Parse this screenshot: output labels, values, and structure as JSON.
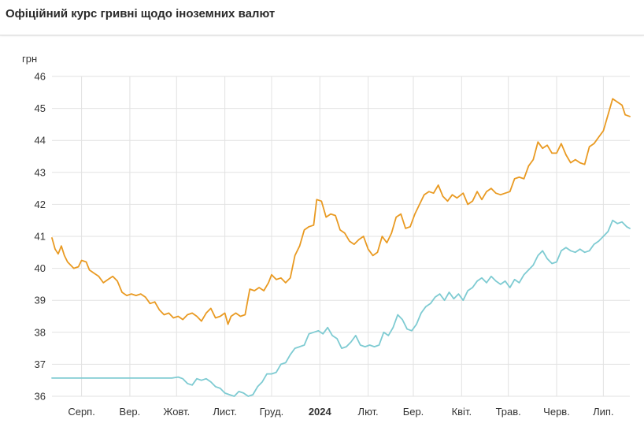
{
  "title": "Офіційний курс гривні щодо іноземних валют",
  "chart_data": {
    "type": "line",
    "title": "Офіційний курс гривні щодо іноземних валют",
    "ylabel": "грн",
    "ylim": [
      36,
      46
    ],
    "yticks": [
      "36",
      "37",
      "38",
      "39",
      "40",
      "41",
      "42",
      "43",
      "44",
      "45",
      "46"
    ],
    "xlim": [
      "2023-07-13",
      "2024-07-18"
    ],
    "x_ticks": [
      {
        "label": "Серп.",
        "date": "2023-08-01",
        "bold": false
      },
      {
        "label": "Вер.",
        "date": "2023-09-01",
        "bold": false
      },
      {
        "label": "Жовт.",
        "date": "2023-10-01",
        "bold": false
      },
      {
        "label": "Лист.",
        "date": "2023-11-01",
        "bold": false
      },
      {
        "label": "Груд.",
        "date": "2023-12-01",
        "bold": false
      },
      {
        "label": "2024",
        "date": "2024-01-01",
        "bold": true
      },
      {
        "label": "Лют.",
        "date": "2024-02-01",
        "bold": false
      },
      {
        "label": "Бер.",
        "date": "2024-03-01",
        "bold": false
      },
      {
        "label": "Квіт.",
        "date": "2024-04-01",
        "bold": false
      },
      {
        "label": "Трав.",
        "date": "2024-05-01",
        "bold": false
      },
      {
        "label": "Черв.",
        "date": "2024-06-01",
        "bold": false
      },
      {
        "label": "Лип.",
        "date": "2024-07-01",
        "bold": false
      }
    ],
    "grid": true,
    "series": [
      {
        "color": "#e99a22",
        "points": [
          [
            "2023-07-13",
            40.95
          ],
          [
            "2023-07-15",
            40.6
          ],
          [
            "2023-07-17",
            40.45
          ],
          [
            "2023-07-19",
            40.7
          ],
          [
            "2023-07-21",
            40.4
          ],
          [
            "2023-07-23",
            40.2
          ],
          [
            "2023-07-25",
            40.1
          ],
          [
            "2023-07-27",
            40.0
          ],
          [
            "2023-07-30",
            40.05
          ],
          [
            "2023-08-01",
            40.25
          ],
          [
            "2023-08-04",
            40.2
          ],
          [
            "2023-08-06",
            39.95
          ],
          [
            "2023-08-09",
            39.85
          ],
          [
            "2023-08-12",
            39.75
          ],
          [
            "2023-08-15",
            39.55
          ],
          [
            "2023-08-18",
            39.65
          ],
          [
            "2023-08-21",
            39.75
          ],
          [
            "2023-08-24",
            39.6
          ],
          [
            "2023-08-27",
            39.25
          ],
          [
            "2023-08-30",
            39.15
          ],
          [
            "2023-09-02",
            39.2
          ],
          [
            "2023-09-05",
            39.15
          ],
          [
            "2023-09-08",
            39.2
          ],
          [
            "2023-09-11",
            39.1
          ],
          [
            "2023-09-14",
            38.9
          ],
          [
            "2023-09-17",
            38.95
          ],
          [
            "2023-09-20",
            38.7
          ],
          [
            "2023-09-23",
            38.55
          ],
          [
            "2023-09-26",
            38.6
          ],
          [
            "2023-09-29",
            38.45
          ],
          [
            "2023-10-02",
            38.5
          ],
          [
            "2023-10-05",
            38.4
          ],
          [
            "2023-10-08",
            38.55
          ],
          [
            "2023-10-11",
            38.6
          ],
          [
            "2023-10-14",
            38.5
          ],
          [
            "2023-10-17",
            38.35
          ],
          [
            "2023-10-20",
            38.6
          ],
          [
            "2023-10-23",
            38.75
          ],
          [
            "2023-10-26",
            38.45
          ],
          [
            "2023-10-29",
            38.5
          ],
          [
            "2023-11-01",
            38.6
          ],
          [
            "2023-11-03",
            38.25
          ],
          [
            "2023-11-05",
            38.5
          ],
          [
            "2023-11-08",
            38.6
          ],
          [
            "2023-11-11",
            38.5
          ],
          [
            "2023-11-14",
            38.55
          ],
          [
            "2023-11-17",
            39.35
          ],
          [
            "2023-11-20",
            39.3
          ],
          [
            "2023-11-23",
            39.4
          ],
          [
            "2023-11-26",
            39.3
          ],
          [
            "2023-11-29",
            39.55
          ],
          [
            "2023-12-01",
            39.8
          ],
          [
            "2023-12-04",
            39.65
          ],
          [
            "2023-12-07",
            39.7
          ],
          [
            "2023-12-10",
            39.55
          ],
          [
            "2023-12-13",
            39.7
          ],
          [
            "2023-12-16",
            40.4
          ],
          [
            "2023-12-19",
            40.7
          ],
          [
            "2023-12-22",
            41.2
          ],
          [
            "2023-12-25",
            41.3
          ],
          [
            "2023-12-28",
            41.35
          ],
          [
            "2023-12-30",
            42.15
          ],
          [
            "2024-01-02",
            42.1
          ],
          [
            "2024-01-05",
            41.6
          ],
          [
            "2024-01-08",
            41.7
          ],
          [
            "2024-01-11",
            41.65
          ],
          [
            "2024-01-14",
            41.2
          ],
          [
            "2024-01-17",
            41.1
          ],
          [
            "2024-01-20",
            40.85
          ],
          [
            "2024-01-23",
            40.75
          ],
          [
            "2024-01-26",
            40.9
          ],
          [
            "2024-01-29",
            41.0
          ],
          [
            "2024-02-01",
            40.6
          ],
          [
            "2024-02-04",
            40.4
          ],
          [
            "2024-02-07",
            40.5
          ],
          [
            "2024-02-10",
            41.0
          ],
          [
            "2024-02-13",
            40.8
          ],
          [
            "2024-02-16",
            41.1
          ],
          [
            "2024-02-19",
            41.6
          ],
          [
            "2024-02-22",
            41.7
          ],
          [
            "2024-02-25",
            41.25
          ],
          [
            "2024-02-28",
            41.3
          ],
          [
            "2024-03-02",
            41.7
          ],
          [
            "2024-03-05",
            42.0
          ],
          [
            "2024-03-08",
            42.3
          ],
          [
            "2024-03-11",
            42.4
          ],
          [
            "2024-03-14",
            42.35
          ],
          [
            "2024-03-17",
            42.6
          ],
          [
            "2024-03-20",
            42.25
          ],
          [
            "2024-03-23",
            42.1
          ],
          [
            "2024-03-26",
            42.3
          ],
          [
            "2024-03-29",
            42.2
          ],
          [
            "2024-04-02",
            42.35
          ],
          [
            "2024-04-05",
            42.0
          ],
          [
            "2024-04-08",
            42.1
          ],
          [
            "2024-04-11",
            42.4
          ],
          [
            "2024-04-14",
            42.15
          ],
          [
            "2024-04-17",
            42.4
          ],
          [
            "2024-04-20",
            42.5
          ],
          [
            "2024-04-23",
            42.35
          ],
          [
            "2024-04-26",
            42.3
          ],
          [
            "2024-04-29",
            42.35
          ],
          [
            "2024-05-02",
            42.4
          ],
          [
            "2024-05-05",
            42.8
          ],
          [
            "2024-05-08",
            42.85
          ],
          [
            "2024-05-11",
            42.8
          ],
          [
            "2024-05-14",
            43.2
          ],
          [
            "2024-05-17",
            43.4
          ],
          [
            "2024-05-20",
            43.95
          ],
          [
            "2024-05-23",
            43.75
          ],
          [
            "2024-05-26",
            43.85
          ],
          [
            "2024-05-29",
            43.6
          ],
          [
            "2024-06-01",
            43.6
          ],
          [
            "2024-06-04",
            43.9
          ],
          [
            "2024-06-07",
            43.55
          ],
          [
            "2024-06-10",
            43.3
          ],
          [
            "2024-06-13",
            43.4
          ],
          [
            "2024-06-16",
            43.3
          ],
          [
            "2024-06-19",
            43.25
          ],
          [
            "2024-06-22",
            43.8
          ],
          [
            "2024-06-25",
            43.9
          ],
          [
            "2024-06-28",
            44.1
          ],
          [
            "2024-07-01",
            44.3
          ],
          [
            "2024-07-04",
            44.8
          ],
          [
            "2024-07-07",
            45.3
          ],
          [
            "2024-07-10",
            45.2
          ],
          [
            "2024-07-13",
            45.1
          ],
          [
            "2024-07-15",
            44.8
          ],
          [
            "2024-07-18",
            44.75
          ]
        ]
      },
      {
        "color": "#7ecbd2",
        "points": [
          [
            "2023-07-13",
            36.57
          ],
          [
            "2023-08-01",
            36.57
          ],
          [
            "2023-09-01",
            36.57
          ],
          [
            "2023-09-28",
            36.57
          ],
          [
            "2023-10-02",
            36.6
          ],
          [
            "2023-10-05",
            36.55
          ],
          [
            "2023-10-08",
            36.4
          ],
          [
            "2023-10-11",
            36.35
          ],
          [
            "2023-10-14",
            36.55
          ],
          [
            "2023-10-17",
            36.5
          ],
          [
            "2023-10-20",
            36.55
          ],
          [
            "2023-10-23",
            36.45
          ],
          [
            "2023-10-26",
            36.3
          ],
          [
            "2023-10-29",
            36.25
          ],
          [
            "2023-11-01",
            36.1
          ],
          [
            "2023-11-04",
            36.05
          ],
          [
            "2023-11-07",
            36.0
          ],
          [
            "2023-11-10",
            36.15
          ],
          [
            "2023-11-13",
            36.1
          ],
          [
            "2023-11-16",
            36.0
          ],
          [
            "2023-11-19",
            36.05
          ],
          [
            "2023-11-22",
            36.3
          ],
          [
            "2023-11-25",
            36.45
          ],
          [
            "2023-11-28",
            36.7
          ],
          [
            "2023-12-01",
            36.7
          ],
          [
            "2023-12-04",
            36.75
          ],
          [
            "2023-12-07",
            37.0
          ],
          [
            "2023-12-10",
            37.05
          ],
          [
            "2023-12-13",
            37.3
          ],
          [
            "2023-12-16",
            37.5
          ],
          [
            "2023-12-19",
            37.55
          ],
          [
            "2023-12-22",
            37.6
          ],
          [
            "2023-12-25",
            37.95
          ],
          [
            "2023-12-28",
            38.0
          ],
          [
            "2023-12-31",
            38.05
          ],
          [
            "2024-01-03",
            37.95
          ],
          [
            "2024-01-06",
            38.15
          ],
          [
            "2024-01-09",
            37.9
          ],
          [
            "2024-01-12",
            37.8
          ],
          [
            "2024-01-15",
            37.5
          ],
          [
            "2024-01-18",
            37.55
          ],
          [
            "2024-01-21",
            37.7
          ],
          [
            "2024-01-24",
            37.9
          ],
          [
            "2024-01-27",
            37.6
          ],
          [
            "2024-01-30",
            37.55
          ],
          [
            "2024-02-02",
            37.6
          ],
          [
            "2024-02-05",
            37.55
          ],
          [
            "2024-02-08",
            37.6
          ],
          [
            "2024-02-11",
            38.0
          ],
          [
            "2024-02-14",
            37.9
          ],
          [
            "2024-02-17",
            38.15
          ],
          [
            "2024-02-20",
            38.55
          ],
          [
            "2024-02-23",
            38.4
          ],
          [
            "2024-02-26",
            38.1
          ],
          [
            "2024-02-29",
            38.05
          ],
          [
            "2024-03-03",
            38.25
          ],
          [
            "2024-03-06",
            38.6
          ],
          [
            "2024-03-09",
            38.8
          ],
          [
            "2024-03-12",
            38.9
          ],
          [
            "2024-03-15",
            39.1
          ],
          [
            "2024-03-18",
            39.2
          ],
          [
            "2024-03-21",
            39.0
          ],
          [
            "2024-03-24",
            39.25
          ],
          [
            "2024-03-27",
            39.05
          ],
          [
            "2024-03-30",
            39.2
          ],
          [
            "2024-04-02",
            39.0
          ],
          [
            "2024-04-05",
            39.3
          ],
          [
            "2024-04-08",
            39.4
          ],
          [
            "2024-04-11",
            39.6
          ],
          [
            "2024-04-14",
            39.7
          ],
          [
            "2024-04-17",
            39.55
          ],
          [
            "2024-04-20",
            39.75
          ],
          [
            "2024-04-23",
            39.6
          ],
          [
            "2024-04-26",
            39.5
          ],
          [
            "2024-04-29",
            39.6
          ],
          [
            "2024-05-02",
            39.4
          ],
          [
            "2024-05-05",
            39.65
          ],
          [
            "2024-05-08",
            39.55
          ],
          [
            "2024-05-11",
            39.8
          ],
          [
            "2024-05-14",
            39.95
          ],
          [
            "2024-05-17",
            40.1
          ],
          [
            "2024-05-20",
            40.4
          ],
          [
            "2024-05-23",
            40.55
          ],
          [
            "2024-05-26",
            40.3
          ],
          [
            "2024-05-29",
            40.15
          ],
          [
            "2024-06-01",
            40.2
          ],
          [
            "2024-06-04",
            40.55
          ],
          [
            "2024-06-07",
            40.65
          ],
          [
            "2024-06-10",
            40.55
          ],
          [
            "2024-06-13",
            40.5
          ],
          [
            "2024-06-16",
            40.6
          ],
          [
            "2024-06-19",
            40.5
          ],
          [
            "2024-06-22",
            40.55
          ],
          [
            "2024-06-25",
            40.75
          ],
          [
            "2024-06-28",
            40.85
          ],
          [
            "2024-07-01",
            41.0
          ],
          [
            "2024-07-04",
            41.15
          ],
          [
            "2024-07-07",
            41.5
          ],
          [
            "2024-07-10",
            41.4
          ],
          [
            "2024-07-13",
            41.45
          ],
          [
            "2024-07-16",
            41.3
          ],
          [
            "2024-07-18",
            41.25
          ]
        ]
      }
    ]
  }
}
